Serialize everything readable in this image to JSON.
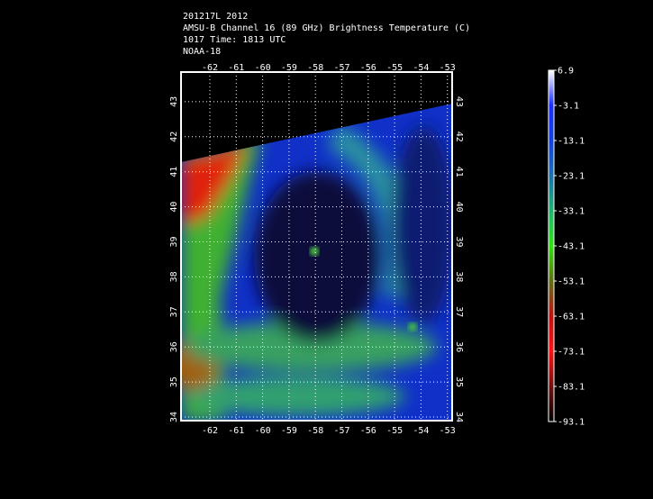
{
  "header": {
    "lines": [
      "201217L 2012",
      "AMSU-B Channel 16 (89 GHz) Brightness Temperature (C)",
      "1017 Time: 1813 UTC",
      "NOAA-18"
    ]
  },
  "map": {
    "lon_ticks": [
      -62,
      -61,
      -60,
      -59,
      -58,
      -57,
      -56,
      -55,
      -54,
      -53
    ],
    "lat_ticks": [
      43,
      42,
      41,
      40,
      39,
      38,
      37,
      36,
      35,
      34
    ]
  },
  "colorbar": {
    "labels": [
      6.9,
      -3.1,
      -13.1,
      -23.1,
      -33.1,
      -43.1,
      -53.1,
      -63.1,
      -73.1,
      -83.1,
      -93.1
    ]
  }
}
